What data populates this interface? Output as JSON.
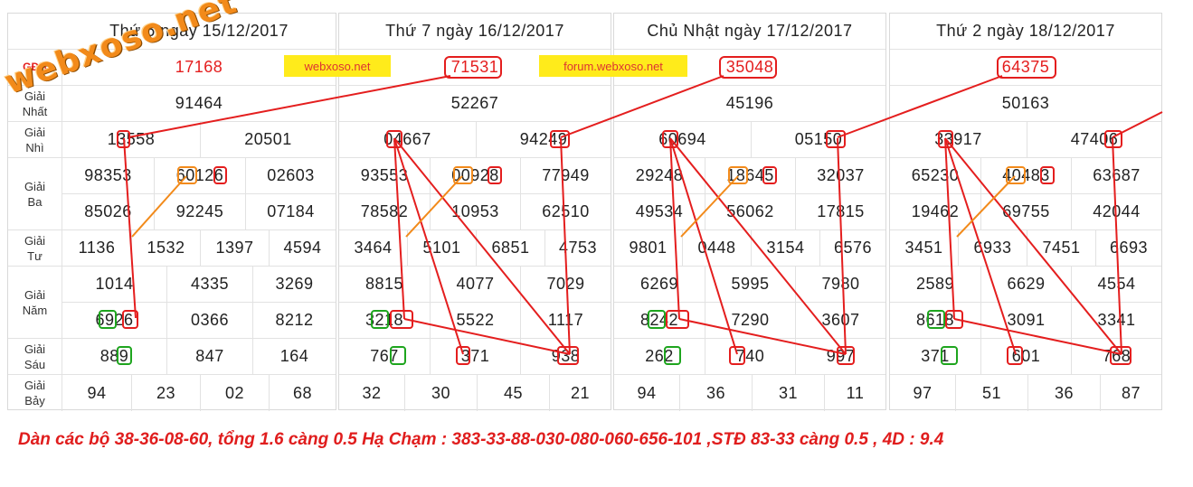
{
  "watermark": "webxoso.net",
  "labels": {
    "db": "GĐB",
    "nhat": [
      "Giải",
      "Nhất"
    ],
    "nhi": [
      "Giải",
      "Nhì"
    ],
    "ba": [
      "Giải",
      "Ba"
    ],
    "tu": [
      "Giải",
      "Tư"
    ],
    "nam": [
      "Giải",
      "Năm"
    ],
    "sau": [
      "Giải",
      "Sáu"
    ],
    "bay": [
      "Giải",
      "Bảy"
    ]
  },
  "ads": {
    "ad1": "webxoso.net",
    "ad2": "forum.webxoso.net"
  },
  "days": [
    {
      "header": "Thứ 6 ngày 15/12/2017",
      "db": "17168",
      "nhat": "91464",
      "nhi": [
        "13558",
        "20501"
      ],
      "ba": [
        "98353",
        "60126",
        "02603",
        "85026",
        "92245",
        "07184"
      ],
      "tu": [
        "1136",
        "1532",
        "1397",
        "4594"
      ],
      "nam": [
        "1014",
        "4335",
        "3269",
        "6926",
        "0366",
        "8212"
      ],
      "sau": [
        "889",
        "847",
        "164"
      ],
      "bay": [
        "94",
        "23",
        "02",
        "68"
      ]
    },
    {
      "header": "Thứ 7 ngày 16/12/2017",
      "db": "71531",
      "nhat": "52267",
      "nhi": [
        "04667",
        "94249"
      ],
      "ba": [
        "93553",
        "00928",
        "77949",
        "78582",
        "10953",
        "62510"
      ],
      "tu": [
        "3464",
        "5101",
        "6851",
        "4753"
      ],
      "nam": [
        "8815",
        "4077",
        "7029",
        "3218",
        "5522",
        "1117"
      ],
      "sau": [
        "767",
        "371",
        "938"
      ],
      "bay": [
        "32",
        "30",
        "45",
        "21"
      ]
    },
    {
      "header": "Chủ Nhật ngày 17/12/2017",
      "db": "35048",
      "nhat": "45196",
      "nhi": [
        "60694",
        "05150"
      ],
      "ba": [
        "29248",
        "18645",
        "32037",
        "49534",
        "56062",
        "17815"
      ],
      "tu": [
        "9801",
        "0448",
        "3154",
        "6576"
      ],
      "nam": [
        "6269",
        "5995",
        "7980",
        "8242",
        "7290",
        "3607"
      ],
      "sau": [
        "262",
        "740",
        "997"
      ],
      "bay": [
        "94",
        "36",
        "31",
        "11"
      ]
    },
    {
      "header": "Thứ 2 ngày 18/12/2017",
      "db": "64375",
      "nhat": "50163",
      "nhi": [
        "33917",
        "47406"
      ],
      "ba": [
        "65230",
        "40483",
        "63687",
        "19462",
        "69755",
        "42044"
      ],
      "tu": [
        "3451",
        "6933",
        "7451",
        "6693"
      ],
      "nam": [
        "2589",
        "6629",
        "4554",
        "8618",
        "3091",
        "3341"
      ],
      "sau": [
        "371",
        "601",
        "768"
      ],
      "bay": [
        "97",
        "51",
        "36",
        "87"
      ]
    }
  ],
  "note": "Dàn các bộ 38-36-08-60, tổng 1.6 càng 0.5 Hạ Chạm : 383-33-88-030-080-060-656-101 ,STĐ 83-33 càng 0.5 , 4D : 9.4",
  "colors": {
    "red": "#e41e1e",
    "orange": "#f28a1a",
    "green": "#1ea51e",
    "yellow": "#ffeb1b"
  }
}
